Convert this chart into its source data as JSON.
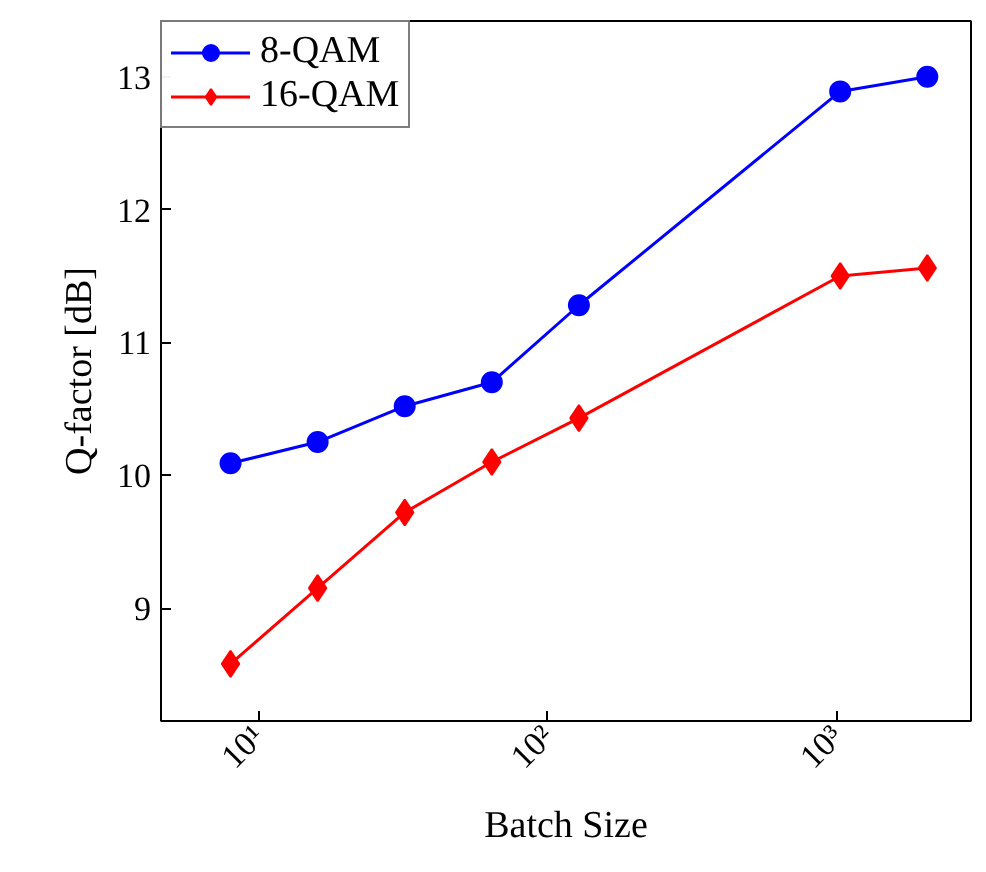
{
  "chart_data": {
    "type": "line",
    "xlabel": "Batch Size",
    "ylabel": "Q-factor [dB]",
    "log": "x",
    "xlim": [
      4.6,
      2900
    ],
    "xticks": [
      {
        "value": 10,
        "label": "10¹"
      },
      {
        "value": 100,
        "label": "10²"
      },
      {
        "value": 1000,
        "label": "10³"
      }
    ],
    "ylim": [
      8.15,
      13.42
    ],
    "yticks": [
      9,
      10,
      11,
      12,
      13
    ],
    "x": [
      8,
      16,
      32,
      64,
      128,
      1024,
      2048
    ],
    "series": [
      {
        "name": "8-QAM",
        "color": "#0000ff",
        "marker": "circle",
        "values": [
          10.09,
          10.25,
          10.52,
          10.7,
          11.28,
          12.89,
          13.0
        ]
      },
      {
        "name": "16-QAM",
        "color": "#ff0000",
        "marker": "diamond",
        "values": [
          8.58,
          9.15,
          9.72,
          10.1,
          10.43,
          11.5,
          11.56
        ]
      }
    ],
    "grid": false,
    "legend": "top left",
    "line_style": "solid"
  }
}
